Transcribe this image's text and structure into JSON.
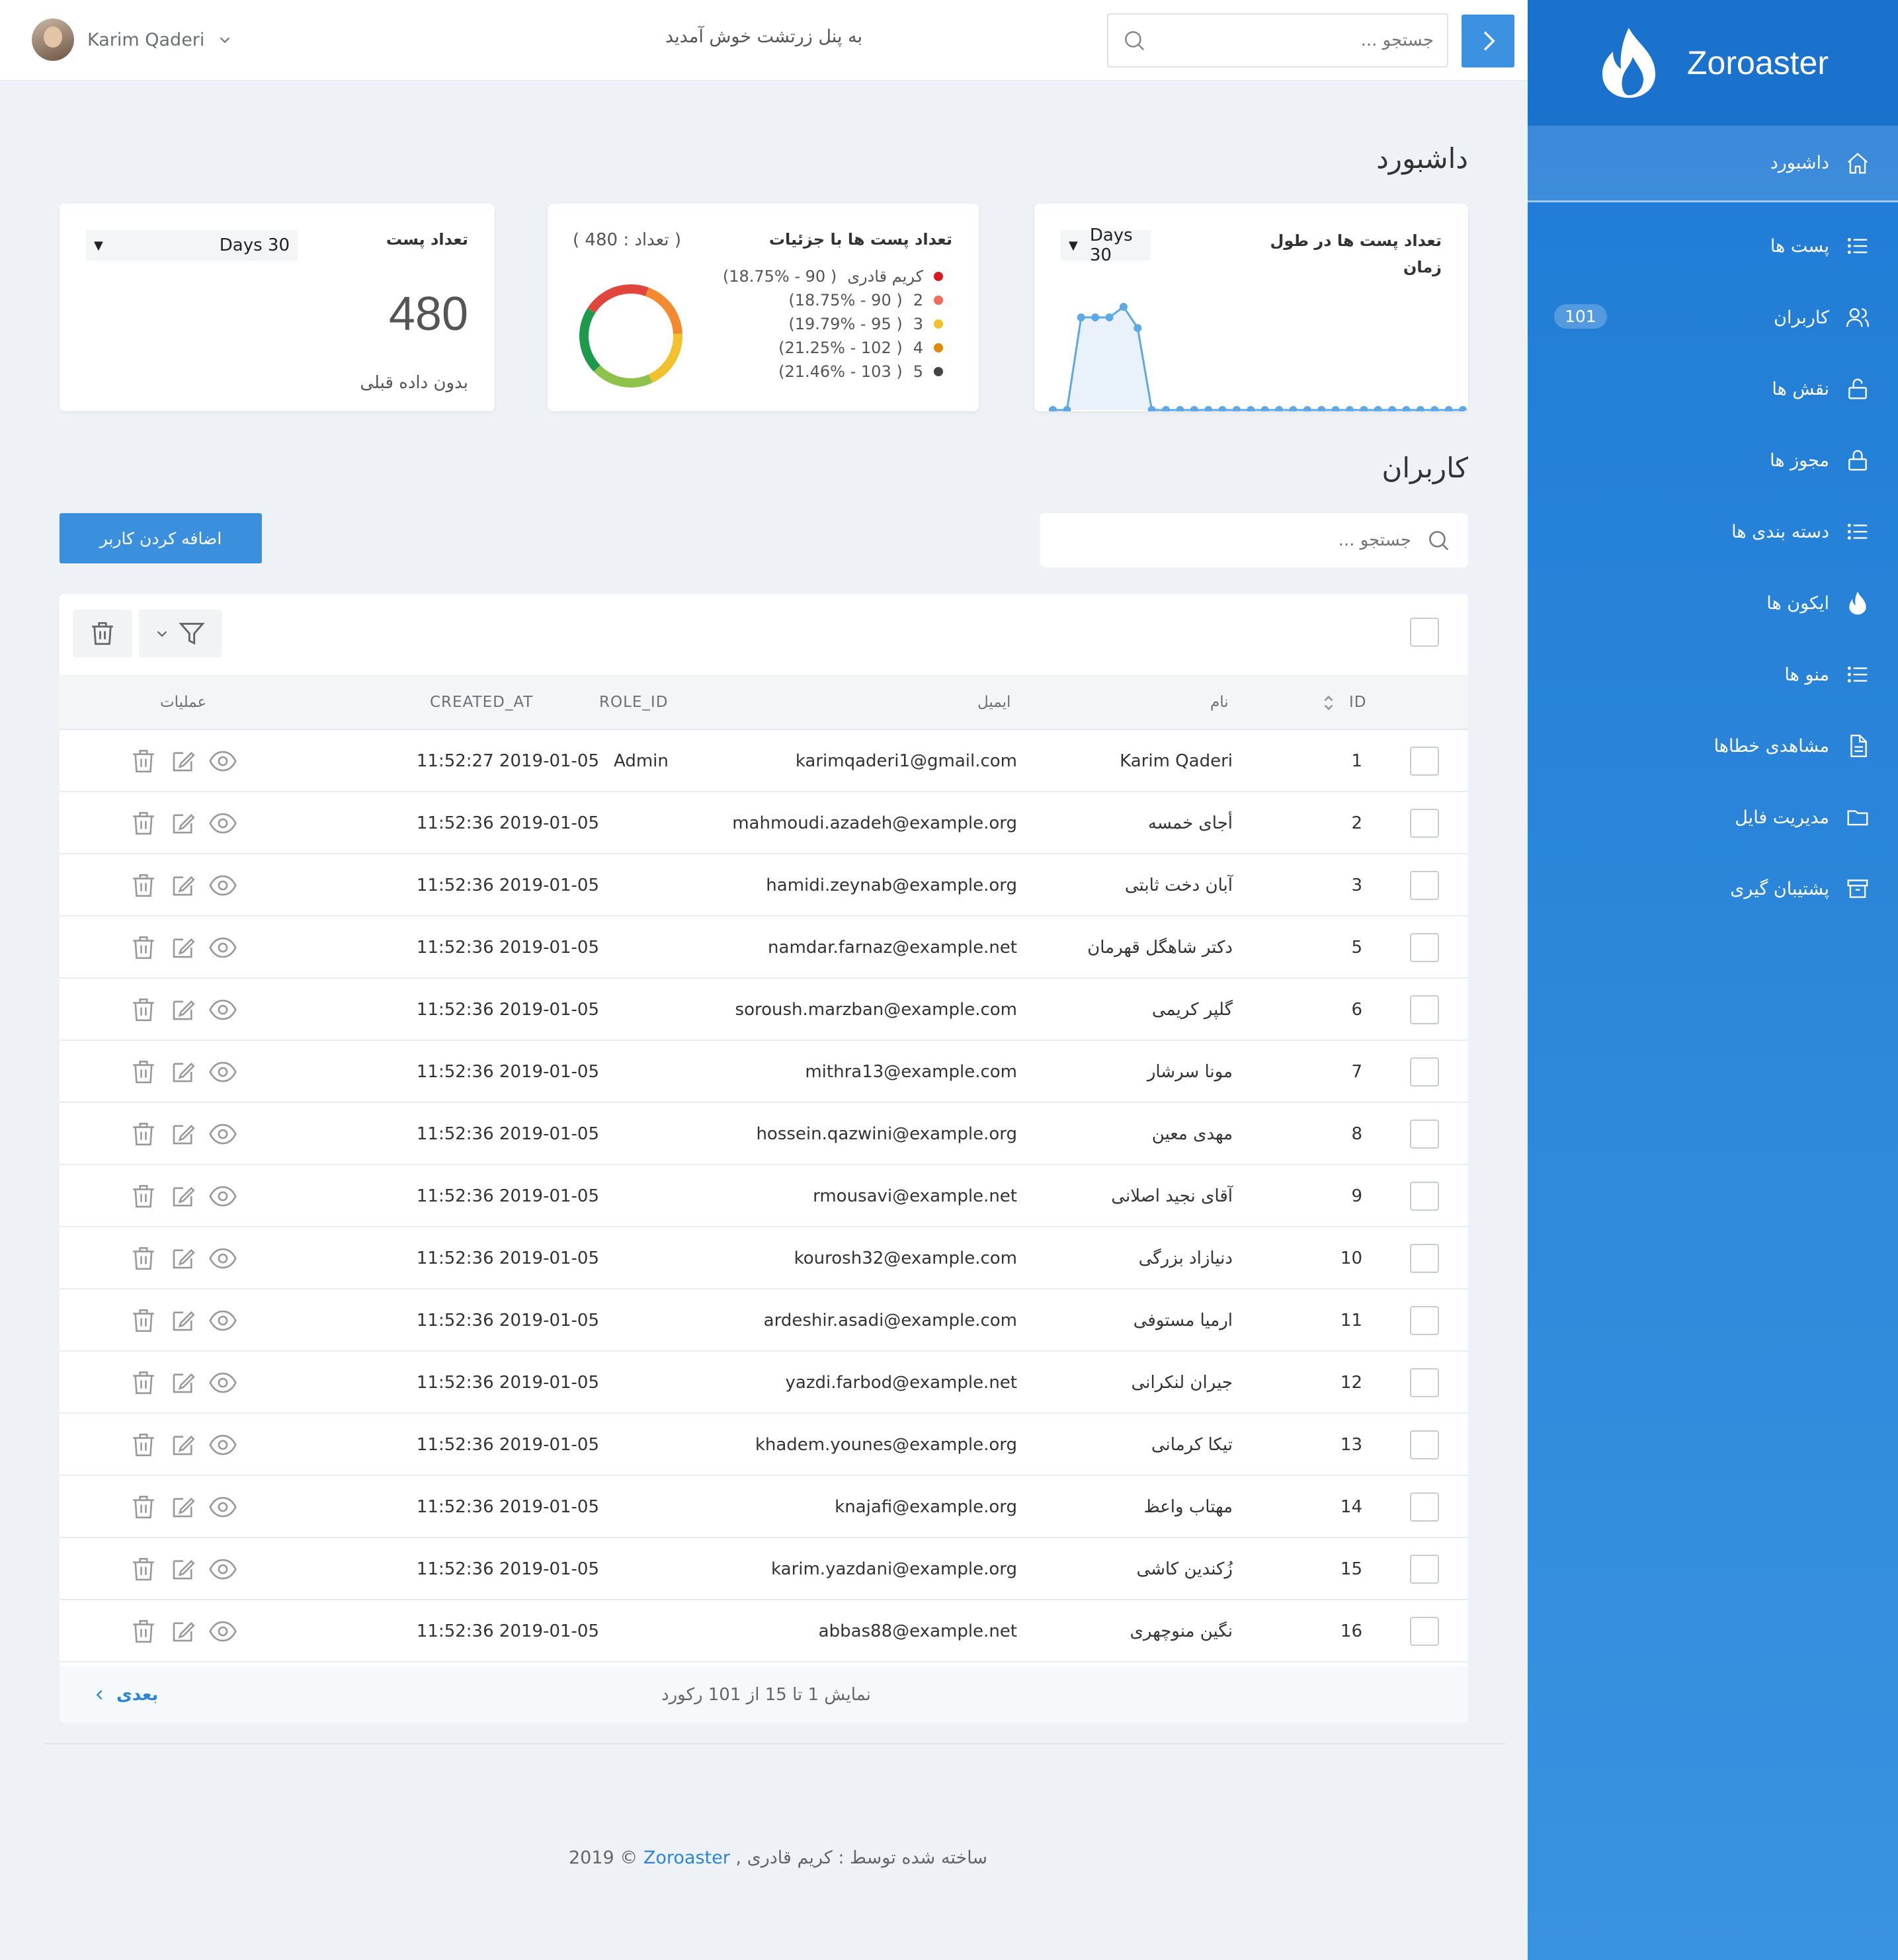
{
  "sidebar": {
    "brand": "Zoroaster",
    "items": [
      {
        "label": "داشبورد",
        "icon": "home-icon",
        "active": true
      },
      {
        "label": "پست ها",
        "icon": "list-icon"
      },
      {
        "label": "کاربران",
        "icon": "users-icon",
        "badge": "101"
      },
      {
        "label": "نقش ها",
        "icon": "unlock-icon"
      },
      {
        "label": "مجوز ها",
        "icon": "lock-icon"
      },
      {
        "label": "دسته بندی ها",
        "icon": "list-icon"
      },
      {
        "label": "ایکون ها",
        "icon": "flame-icon"
      },
      {
        "label": "منو ها",
        "icon": "list-icon"
      },
      {
        "label": "مشاهدی خطاها",
        "icon": "file-icon"
      },
      {
        "label": "مدیریت فایل",
        "icon": "folder-icon"
      },
      {
        "label": "پشتیبان گیری",
        "icon": "archive-icon"
      }
    ]
  },
  "header": {
    "user_name": "Karim Qaderi",
    "welcome": "به پنل زرتشت خوش آمدید",
    "search_placeholder": "جستجو ..."
  },
  "dashboard": {
    "title": "داشبورد",
    "posts_card": {
      "title": "تعداد پست",
      "range": "Days 30",
      "value": "480",
      "note": "بدون داده قبلی"
    },
    "donut_card": {
      "title": "تعداد پست ها با جزئیات",
      "count_label": "( تعداد : 480 )",
      "legend": [
        {
          "label": "کریم قادری",
          "detail": "( 90 - 18.75%)",
          "color": "#d7191c"
        },
        {
          "label": "2",
          "detail": "( 90 - 18.75%)",
          "color": "#f06b5a"
        },
        {
          "label": "3",
          "detail": "( 95 - 19.79%)",
          "color": "#f2c12e"
        },
        {
          "label": "4",
          "detail": "( 102 - 21.25%)",
          "color": "#e08a00"
        },
        {
          "label": "5",
          "detail": "( 103 - 21.46%)",
          "color": "#444444"
        }
      ]
    },
    "timeline_card": {
      "title_line1": "تعداد پست ها در طول",
      "title_line2": "زمان",
      "range": "Days 30"
    }
  },
  "chart_data": [
    {
      "type": "pie",
      "donut": true,
      "labels": [
        "کریم قادری",
        "2",
        "3",
        "4",
        "5"
      ],
      "values": [
        90,
        90,
        95,
        102,
        103
      ],
      "colors": [
        "#f28b30",
        "#f2c12e",
        "#8fc14d",
        "#1e9a4c",
        "#e0463c"
      ]
    },
    {
      "type": "area",
      "x": [
        1,
        2,
        3,
        4,
        5,
        6,
        7,
        8,
        9,
        10,
        11,
        12,
        13,
        14,
        15,
        16,
        17,
        18,
        19,
        20,
        21,
        22,
        23,
        24,
        25,
        26,
        27,
        28,
        29,
        30
      ],
      "values": [
        0,
        0,
        70,
        70,
        70,
        78,
        62,
        0,
        0,
        0,
        0,
        0,
        0,
        0,
        0,
        0,
        0,
        0,
        0,
        0,
        0,
        0,
        0,
        0,
        0,
        0,
        0,
        0,
        0,
        0
      ],
      "ylim": [
        0,
        100
      ],
      "color": "#5ea8e6",
      "grid": false
    }
  ],
  "users": {
    "title": "کاربران",
    "search_placeholder": "جستجو ...",
    "add_button": "اضافه کردن کاربر",
    "columns": {
      "id": "ID",
      "name": "نام",
      "email": "ایمیل",
      "role": "ROLE_ID",
      "created": "CREATED_AT",
      "ops": "عملیات"
    },
    "rows": [
      {
        "id": "1",
        "name": "Karim Qaderi",
        "email": "karimqaderi1@gmail.com",
        "role": "Admin",
        "created": "11:52:27 2019-01-05"
      },
      {
        "id": "2",
        "name": "أجای خمسه",
        "email": "mahmoudi.azadeh@example.org",
        "role": "",
        "created": "11:52:36 2019-01-05"
      },
      {
        "id": "3",
        "name": "آبان دخت ثابتی",
        "email": "hamidi.zeynab@example.org",
        "role": "",
        "created": "11:52:36 2019-01-05"
      },
      {
        "id": "5",
        "name": "دکتر شاهگل قهرمان",
        "email": "namdar.farnaz@example.net",
        "role": "",
        "created": "11:52:36 2019-01-05"
      },
      {
        "id": "6",
        "name": "گلپر کریمی",
        "email": "soroush.marzban@example.com",
        "role": "",
        "created": "11:52:36 2019-01-05"
      },
      {
        "id": "7",
        "name": "مونا سرشار",
        "email": "mithra13@example.com",
        "role": "",
        "created": "11:52:36 2019-01-05"
      },
      {
        "id": "8",
        "name": "مهدی معین",
        "email": "hossein.qazwini@example.org",
        "role": "",
        "created": "11:52:36 2019-01-05"
      },
      {
        "id": "9",
        "name": "آقای نجید اصلانی",
        "email": "rmousavi@example.net",
        "role": "",
        "created": "11:52:36 2019-01-05"
      },
      {
        "id": "10",
        "name": "دنیازاد بزرگی",
        "email": "kourosh32@example.com",
        "role": "",
        "created": "11:52:36 2019-01-05"
      },
      {
        "id": "11",
        "name": "ارمیا مستوفی",
        "email": "ardeshir.asadi@example.com",
        "role": "",
        "created": "11:52:36 2019-01-05"
      },
      {
        "id": "12",
        "name": "جیران لنکرانی",
        "email": "yazdi.farbod@example.net",
        "role": "",
        "created": "11:52:36 2019-01-05"
      },
      {
        "id": "13",
        "name": "تیکا کرمانی",
        "email": "khadem.younes@example.org",
        "role": "",
        "created": "11:52:36 2019-01-05"
      },
      {
        "id": "14",
        "name": "مهتاب واعظ",
        "email": "knajafi@example.org",
        "role": "",
        "created": "11:52:36 2019-01-05"
      },
      {
        "id": "15",
        "name": "زُکندین کاشی",
        "email": "karim.yazdani@example.org",
        "role": "",
        "created": "11:52:36 2019-01-05"
      },
      {
        "id": "16",
        "name": "نگین منوچهری",
        "email": "abbas88@example.net",
        "role": "",
        "created": "11:52:36 2019-01-05"
      }
    ],
    "pagination_text": "نمایش 1 تا 15 از 101 رکورد",
    "next_label": "بعدی"
  },
  "footer": {
    "copyright": "2019 ©",
    "brand": "Zoroaster",
    "rest": ", ساخته شده توسط : کریم قادری"
  }
}
